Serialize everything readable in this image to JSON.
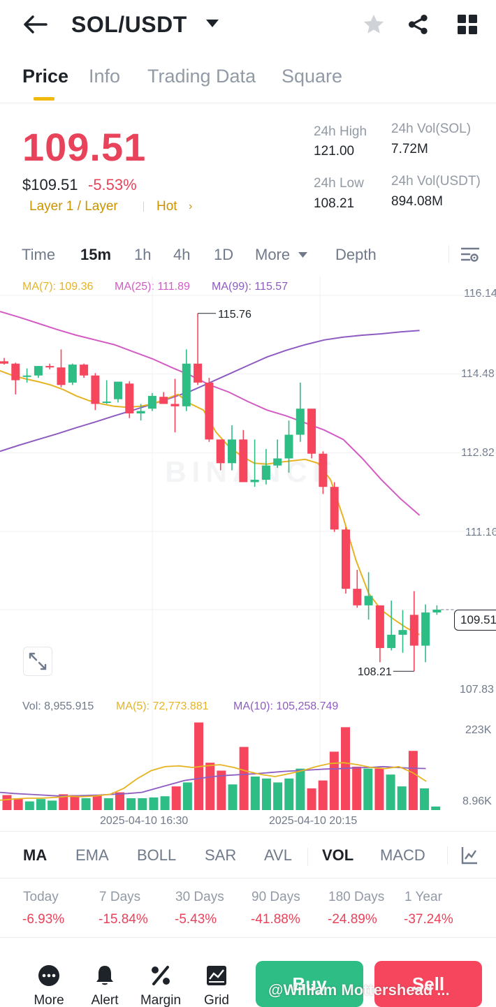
{
  "header": {
    "pair": "SOL/USDT"
  },
  "tabs": [
    "Price",
    "Info",
    "Trading Data",
    "Square"
  ],
  "ticker": {
    "last_price": "109.51",
    "usd_price": "$109.51",
    "change_pct": "-5.53%",
    "tag_layer": "Layer 1 / Layer",
    "tag_hot": "Hot",
    "high_label": "24h High",
    "high_value": "121.00",
    "low_label": "24h Low",
    "low_value": "108.21",
    "vol_base_label": "24h Vol(SOL)",
    "vol_base_value": "7.72M",
    "vol_quote_label": "24h Vol(USDT)",
    "vol_quote_value": "894.08M"
  },
  "timeframes": [
    "Time",
    "15m",
    "1h",
    "4h",
    "1D",
    "More",
    "Depth"
  ],
  "ma_legend": {
    "ma7": "MA(7): 109.36",
    "ma25": "MA(25): 111.89",
    "ma99": "MA(99): 115.57"
  },
  "price_axis": [
    "116.14",
    "114.48",
    "112.82",
    "111.16",
    "109.51",
    "107.83"
  ],
  "annotations": {
    "high": "115.76",
    "low": "108.21"
  },
  "vol_legend": {
    "vol": "Vol: 8,955.915",
    "ma5": "MA(5): 72,773.881",
    "ma10": "MA(10): 105,258.749"
  },
  "vol_axis": [
    "223K",
    "8.96K"
  ],
  "time_axis": [
    "2025-04-10 16:30",
    "2025-04-10 20:15"
  ],
  "indicators": [
    "MA",
    "EMA",
    "BOLL",
    "SAR",
    "AVL",
    "VOL",
    "MACD"
  ],
  "performance": [
    {
      "label": "Today",
      "value": "-6.93%"
    },
    {
      "label": "7 Days",
      "value": "-15.84%"
    },
    {
      "label": "30 Days",
      "value": "-5.43%"
    },
    {
      "label": "90 Days",
      "value": "-41.88%"
    },
    {
      "label": "180 Days",
      "value": "-24.89%"
    },
    {
      "label": "1 Year",
      "value": "-37.24%"
    }
  ],
  "bottom_nav": {
    "more": "More",
    "alert": "Alert",
    "margin": "Margin",
    "grid": "Grid",
    "buy": "Buy",
    "sell": "Sell"
  },
  "watermark": "@William Mottershead ...",
  "colors": {
    "up": "#2ebd85",
    "down": "#f6465d",
    "accent": "#f0b90b",
    "ma7": "#e6b422",
    "ma25": "#d35bc4",
    "ma99": "#8e5cc0"
  },
  "chart_data": {
    "type": "candlestick",
    "interval": "15m",
    "ylim": [
      107.83,
      116.14
    ],
    "candles": [
      {
        "o": 114.75,
        "h": 114.82,
        "l": 114.68,
        "c": 114.7
      },
      {
        "o": 114.7,
        "h": 114.72,
        "l": 114.05,
        "c": 114.35
      },
      {
        "o": 114.42,
        "h": 114.6,
        "l": 114.3,
        "c": 114.45
      },
      {
        "o": 114.45,
        "h": 114.65,
        "l": 114.4,
        "c": 114.65
      },
      {
        "o": 114.65,
        "h": 114.7,
        "l": 114.58,
        "c": 114.62
      },
      {
        "o": 114.62,
        "h": 115.0,
        "l": 114.2,
        "c": 114.25
      },
      {
        "o": 114.3,
        "h": 114.7,
        "l": 114.25,
        "c": 114.68
      },
      {
        "o": 114.68,
        "h": 114.7,
        "l": 114.4,
        "c": 114.45
      },
      {
        "o": 114.45,
        "h": 114.5,
        "l": 113.72,
        "c": 113.85
      },
      {
        "o": 113.9,
        "h": 114.35,
        "l": 113.85,
        "c": 113.9
      },
      {
        "o": 113.95,
        "h": 114.3,
        "l": 113.88,
        "c": 114.32
      },
      {
        "o": 114.28,
        "h": 114.33,
        "l": 113.55,
        "c": 113.65
      },
      {
        "o": 113.65,
        "h": 113.85,
        "l": 113.5,
        "c": 113.7
      },
      {
        "o": 113.75,
        "h": 114.08,
        "l": 113.7,
        "c": 114.02
      },
      {
        "o": 114.0,
        "h": 114.1,
        "l": 113.85,
        "c": 113.85
      },
      {
        "o": 113.85,
        "h": 114.38,
        "l": 113.25,
        "c": 113.8
      },
      {
        "o": 113.8,
        "h": 115.0,
        "l": 113.7,
        "c": 114.7
      },
      {
        "o": 114.7,
        "h": 115.76,
        "l": 114.25,
        "c": 114.3
      },
      {
        "o": 114.3,
        "h": 114.4,
        "l": 113.05,
        "c": 113.1
      },
      {
        "o": 113.1,
        "h": 113.1,
        "l": 112.45,
        "c": 112.6
      },
      {
        "o": 112.6,
        "h": 113.4,
        "l": 112.45,
        "c": 113.1
      },
      {
        "o": 113.1,
        "h": 113.3,
        "l": 112.25,
        "c": 112.2
      },
      {
        "o": 112.2,
        "h": 113.1,
        "l": 112.1,
        "c": 112.25
      },
      {
        "o": 112.25,
        "h": 112.9,
        "l": 112.15,
        "c": 112.55
      },
      {
        "o": 112.55,
        "h": 113.1,
        "l": 112.5,
        "c": 112.7
      },
      {
        "o": 112.7,
        "h": 113.5,
        "l": 112.4,
        "c": 113.2
      },
      {
        "o": 113.2,
        "h": 114.3,
        "l": 113.05,
        "c": 113.75
      },
      {
        "o": 113.75,
        "h": 113.75,
        "l": 112.7,
        "c": 112.8
      },
      {
        "o": 112.8,
        "h": 112.85,
        "l": 111.95,
        "c": 112.1
      },
      {
        "o": 112.1,
        "h": 112.2,
        "l": 111.15,
        "c": 111.2
      },
      {
        "o": 111.2,
        "h": 111.25,
        "l": 109.85,
        "c": 109.95
      },
      {
        "o": 109.95,
        "h": 110.35,
        "l": 109.55,
        "c": 109.6
      },
      {
        "o": 109.6,
        "h": 110.3,
        "l": 109.3,
        "c": 109.8
      },
      {
        "o": 109.6,
        "h": 109.6,
        "l": 108.4,
        "c": 108.7
      },
      {
        "o": 108.7,
        "h": 109.7,
        "l": 108.65,
        "c": 108.98
      },
      {
        "o": 108.98,
        "h": 109.5,
        "l": 108.6,
        "c": 109.08
      },
      {
        "o": 109.4,
        "h": 109.9,
        "l": 108.21,
        "c": 108.75
      },
      {
        "o": 108.75,
        "h": 109.62,
        "l": 108.4,
        "c": 109.45
      },
      {
        "o": 109.45,
        "h": 109.6,
        "l": 109.4,
        "c": 109.51
      }
    ],
    "ma7": [
      114.55,
      114.45,
      114.38,
      114.32,
      114.25,
      114.15,
      114.02,
      113.92,
      113.85,
      113.8,
      113.78,
      113.8,
      113.85,
      113.95,
      114.05,
      113.85,
      113.72,
      113.25,
      112.95,
      112.75,
      112.6,
      112.58,
      112.62,
      112.65,
      112.68,
      112.6,
      112.25,
      111.45,
      110.55,
      109.85,
      109.5,
      109.3,
      109.12,
      108.98
    ],
    "ma25": [
      115.8,
      115.68,
      115.55,
      115.42,
      115.3,
      115.2,
      115.1,
      114.95,
      114.8,
      114.62,
      114.45,
      114.25,
      114.1,
      113.9,
      113.72,
      113.6,
      113.45,
      113.3,
      113.1,
      112.7,
      112.25,
      111.85,
      111.5
    ],
    "ma99": [
      112.85,
      112.98,
      113.1,
      113.22,
      113.35,
      113.47,
      113.6,
      113.72,
      113.85,
      113.98,
      114.12,
      114.3,
      114.48,
      114.66,
      114.84,
      114.98,
      115.1,
      115.2,
      115.26,
      115.3,
      115.33,
      115.37,
      115.4
    ],
    "volume": [
      {
        "v": 38000,
        "up": false
      },
      {
        "v": 30000,
        "up": false
      },
      {
        "v": 22000,
        "up": true
      },
      {
        "v": 28000,
        "up": true
      },
      {
        "v": 24000,
        "up": true
      },
      {
        "v": 40000,
        "up": false
      },
      {
        "v": 38000,
        "up": false
      },
      {
        "v": 30000,
        "up": true
      },
      {
        "v": 38000,
        "up": false
      },
      {
        "v": 30000,
        "up": true
      },
      {
        "v": 45000,
        "up": false
      },
      {
        "v": 30000,
        "up": true
      },
      {
        "v": 30000,
        "up": true
      },
      {
        "v": 32000,
        "up": true
      },
      {
        "v": 35000,
        "up": true
      },
      {
        "v": 60000,
        "up": false
      },
      {
        "v": 70000,
        "up": true
      },
      {
        "v": 222000,
        "up": false
      },
      {
        "v": 120000,
        "up": false
      },
      {
        "v": 100000,
        "up": false
      },
      {
        "v": 65000,
        "up": true
      },
      {
        "v": 160000,
        "up": false
      },
      {
        "v": 85000,
        "up": true
      },
      {
        "v": 80000,
        "up": true
      },
      {
        "v": 70000,
        "up": true
      },
      {
        "v": 80000,
        "up": true
      },
      {
        "v": 105000,
        "up": true
      },
      {
        "v": 55000,
        "up": false
      },
      {
        "v": 75000,
        "up": false
      },
      {
        "v": 148000,
        "up": false
      },
      {
        "v": 210000,
        "up": false
      },
      {
        "v": 110000,
        "up": false
      },
      {
        "v": 105000,
        "up": true
      },
      {
        "v": 105000,
        "up": false
      },
      {
        "v": 90000,
        "up": true
      },
      {
        "v": 60000,
        "up": true
      },
      {
        "v": 150000,
        "up": false
      },
      {
        "v": 55000,
        "up": true
      },
      {
        "v": 8956,
        "up": true
      }
    ],
    "vol_ma5": [
      25000,
      28000,
      30000,
      30000,
      32000,
      35000,
      34000,
      36000,
      40000,
      55000,
      80000,
      100000,
      110000,
      112000,
      108000,
      112000,
      115000,
      108000,
      98000,
      90000,
      85000,
      92000,
      100000,
      110000,
      118000,
      120000,
      115000,
      108000,
      105000,
      110000,
      95000,
      72773
    ],
    "vol_ma10": [
      45000,
      42000,
      40000,
      38000,
      36000,
      36000,
      37000,
      38000,
      40000,
      42000,
      45000,
      55000,
      65000,
      75000,
      80000,
      85000,
      88000,
      90000,
      92000,
      95000,
      98000,
      100000,
      102000,
      104000,
      105000,
      107000,
      108000,
      110000,
      108000,
      106000,
      105258
    ]
  }
}
